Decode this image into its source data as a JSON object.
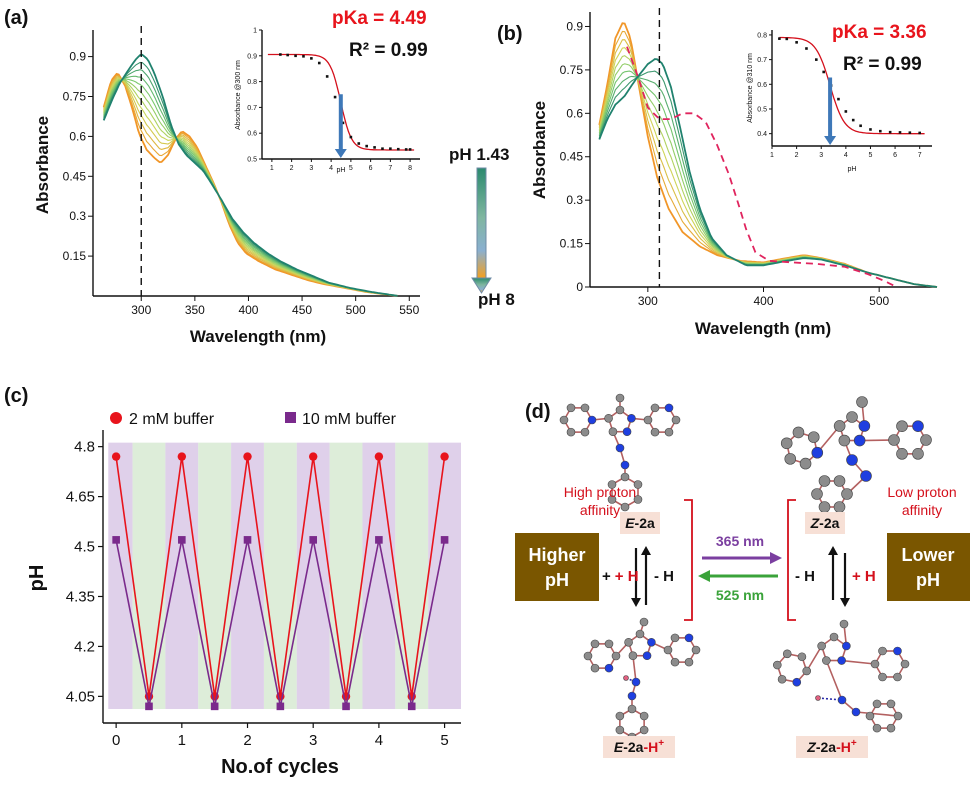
{
  "panels": {
    "a": "(a)",
    "b": "(b)",
    "c": "(c)",
    "d": "(d)"
  },
  "chart_data": [
    {
      "id": "a",
      "type": "line",
      "xlabel": "Wavelength (nm)",
      "ylabel": "Absorbance",
      "xlim": [
        255,
        560
      ],
      "ylim": [
        0,
        1.0
      ],
      "xticks": [
        300,
        350,
        400,
        450,
        500,
        550
      ],
      "yticks": [
        0.15,
        0.3,
        0.45,
        0.6,
        0.75,
        0.9
      ],
      "dashed_line_x": 300,
      "pka_label": "pKa = 4.49",
      "r2_label": "R² = 0.99",
      "ph_start_label": "pH 1.43",
      "ph_end_label": "pH 8",
      "curve_count": 12,
      "acid_spectrum": [
        [
          265,
          0.71
        ],
        [
          272,
          0.81
        ],
        [
          278,
          0.84
        ],
        [
          285,
          0.79
        ],
        [
          292,
          0.7
        ],
        [
          298,
          0.61
        ],
        [
          305,
          0.55
        ],
        [
          312,
          0.52
        ],
        [
          318,
          0.5
        ],
        [
          325,
          0.53
        ],
        [
          332,
          0.59
        ],
        [
          338,
          0.62
        ],
        [
          345,
          0.6
        ],
        [
          352,
          0.56
        ],
        [
          360,
          0.49
        ],
        [
          368,
          0.42
        ],
        [
          375,
          0.35
        ],
        [
          382,
          0.27
        ],
        [
          390,
          0.2
        ],
        [
          398,
          0.16
        ],
        [
          410,
          0.13
        ],
        [
          425,
          0.1
        ],
        [
          440,
          0.08
        ],
        [
          455,
          0.06
        ],
        [
          470,
          0.045
        ],
        [
          490,
          0.03
        ],
        [
          510,
          0.015
        ],
        [
          530,
          0.005
        ],
        [
          540,
          0.0
        ]
      ],
      "base_spectrum": [
        [
          265,
          0.66
        ],
        [
          272,
          0.73
        ],
        [
          280,
          0.8
        ],
        [
          288,
          0.85
        ],
        [
          295,
          0.89
        ],
        [
          300,
          0.91
        ],
        [
          306,
          0.89
        ],
        [
          312,
          0.84
        ],
        [
          320,
          0.75
        ],
        [
          328,
          0.64
        ],
        [
          335,
          0.57
        ],
        [
          342,
          0.53
        ],
        [
          350,
          0.5
        ],
        [
          358,
          0.47
        ],
        [
          366,
          0.42
        ],
        [
          375,
          0.36
        ],
        [
          385,
          0.29
        ],
        [
          395,
          0.24
        ],
        [
          405,
          0.2
        ],
        [
          418,
          0.16
        ],
        [
          430,
          0.13
        ],
        [
          445,
          0.1
        ],
        [
          460,
          0.075
        ],
        [
          475,
          0.05
        ],
        [
          495,
          0.03
        ],
        [
          515,
          0.015
        ],
        [
          540,
          0.0
        ]
      ],
      "inset": {
        "xlabel": "pH",
        "ylabel": "Absorbance @300 nm",
        "xlim": [
          0.5,
          8.5
        ],
        "ylim": [
          0.5,
          1.0
        ],
        "xticks": [
          1,
          2,
          3,
          4,
          5,
          6,
          7,
          8
        ],
        "yticks": [
          0.5,
          0.6,
          0.7,
          0.8,
          0.9,
          1.0
        ],
        "points": [
          [
            1.43,
            0.905
          ],
          [
            1.8,
            0.903
          ],
          [
            2.2,
            0.9
          ],
          [
            2.6,
            0.898
          ],
          [
            3.0,
            0.89
          ],
          [
            3.4,
            0.872
          ],
          [
            3.8,
            0.82
          ],
          [
            4.2,
            0.74
          ],
          [
            4.6,
            0.64
          ],
          [
            5.0,
            0.585
          ],
          [
            5.4,
            0.56
          ],
          [
            5.8,
            0.55
          ],
          [
            6.2,
            0.545
          ],
          [
            6.6,
            0.54
          ],
          [
            7.0,
            0.54
          ],
          [
            7.4,
            0.538
          ],
          [
            7.8,
            0.537
          ],
          [
            8.0,
            0.537
          ]
        ],
        "fit": {
          "top": 0.905,
          "bottom": 0.535,
          "pka": 4.49,
          "slope": 1.6
        },
        "arrow_x": 4.49
      }
    },
    {
      "id": "b",
      "type": "line",
      "xlabel": "Wavelength (nm)",
      "ylabel": "Absorbance",
      "xlim": [
        250,
        550
      ],
      "ylim": [
        0,
        0.95
      ],
      "xticks": [
        300,
        400,
        500
      ],
      "yticks": [
        0,
        0.15,
        0.3,
        0.45,
        0.6,
        0.75,
        0.9
      ],
      "dashed_line_x": 310,
      "pka_label": "pKa = 3.36",
      "r2_label": "R² = 0.99",
      "curve_count": 10,
      "acid_spectrum": [
        [
          258,
          0.56
        ],
        [
          265,
          0.7
        ],
        [
          272,
          0.86
        ],
        [
          279,
          0.92
        ],
        [
          285,
          0.86
        ],
        [
          292,
          0.7
        ],
        [
          300,
          0.52
        ],
        [
          308,
          0.38
        ],
        [
          318,
          0.27
        ],
        [
          330,
          0.19
        ],
        [
          345,
          0.14
        ],
        [
          360,
          0.11
        ],
        [
          380,
          0.09
        ],
        [
          400,
          0.085
        ],
        [
          420,
          0.1
        ],
        [
          435,
          0.11
        ],
        [
          450,
          0.1
        ],
        [
          470,
          0.08
        ],
        [
          490,
          0.05
        ],
        [
          510,
          0.03
        ],
        [
          530,
          0.01
        ],
        [
          550,
          0.0
        ]
      ],
      "base_spectrum": [
        [
          258,
          0.51
        ],
        [
          265,
          0.58
        ],
        [
          272,
          0.63
        ],
        [
          280,
          0.66
        ],
        [
          290,
          0.72
        ],
        [
          300,
          0.77
        ],
        [
          307,
          0.79
        ],
        [
          313,
          0.77
        ],
        [
          320,
          0.69
        ],
        [
          328,
          0.55
        ],
        [
          336,
          0.4
        ],
        [
          345,
          0.27
        ],
        [
          355,
          0.17
        ],
        [
          368,
          0.11
        ],
        [
          385,
          0.075
        ],
        [
          400,
          0.075
        ],
        [
          420,
          0.09
        ],
        [
          435,
          0.1
        ],
        [
          450,
          0.095
        ],
        [
          470,
          0.075
        ],
        [
          490,
          0.05
        ],
        [
          510,
          0.03
        ],
        [
          530,
          0.01
        ],
        [
          550,
          0.0
        ]
      ],
      "dashed_spectrum": [
        [
          282,
          0.83
        ],
        [
          292,
          0.72
        ],
        [
          300,
          0.62
        ],
        [
          310,
          0.58
        ],
        [
          320,
          0.58
        ],
        [
          330,
          0.6
        ],
        [
          340,
          0.6
        ],
        [
          350,
          0.57
        ],
        [
          360,
          0.49
        ],
        [
          370,
          0.39
        ],
        [
          378,
          0.29
        ],
        [
          385,
          0.2
        ],
        [
          393,
          0.12
        ],
        [
          405,
          0.09
        ],
        [
          425,
          0.085
        ],
        [
          445,
          0.08
        ],
        [
          470,
          0.07
        ],
        [
          490,
          0.045
        ],
        [
          505,
          0.02
        ],
        [
          515,
          0.0
        ]
      ],
      "inset": {
        "xlabel": "pH",
        "ylabel": "Absorbance @310 nm",
        "xlim": [
          1,
          7.5
        ],
        "ylim": [
          0.35,
          0.82
        ],
        "xticks": [
          1,
          2,
          3,
          4,
          5,
          6,
          7
        ],
        "yticks": [
          0.4,
          0.5,
          0.6,
          0.7,
          0.8
        ],
        "points": [
          [
            1.3,
            0.785
          ],
          [
            1.6,
            0.784
          ],
          [
            2.0,
            0.77
          ],
          [
            2.4,
            0.745
          ],
          [
            2.8,
            0.7
          ],
          [
            3.1,
            0.65
          ],
          [
            3.4,
            0.595
          ],
          [
            3.7,
            0.54
          ],
          [
            4.0,
            0.49
          ],
          [
            4.3,
            0.455
          ],
          [
            4.6,
            0.432
          ],
          [
            5.0,
            0.417
          ],
          [
            5.4,
            0.41
          ],
          [
            5.8,
            0.406
          ],
          [
            6.2,
            0.405
          ],
          [
            6.6,
            0.404
          ],
          [
            7.0,
            0.403
          ]
        ],
        "fit": {
          "top": 0.79,
          "bottom": 0.4,
          "pka": 3.36,
          "slope": 1.5
        },
        "arrow_x": 3.36
      }
    },
    {
      "id": "c",
      "type": "line",
      "xlabel": "No.of cycles",
      "ylabel": "pH",
      "xlim": [
        -0.2,
        5.25
      ],
      "ylim": [
        3.97,
        4.85
      ],
      "xticks": [
        0,
        1,
        2,
        3,
        4,
        5
      ],
      "yticks": [
        4.05,
        4.2,
        4.35,
        4.5,
        4.65,
        4.8
      ],
      "series": [
        {
          "name": "2 mM buffer",
          "color": "#e8141c",
          "marker": "circle",
          "x": [
            0,
            0.5,
            1,
            1.5,
            2,
            2.5,
            3,
            3.5,
            4,
            4.5,
            5
          ],
          "y": [
            4.77,
            4.05,
            4.77,
            4.05,
            4.77,
            4.05,
            4.77,
            4.05,
            4.77,
            4.05,
            4.77
          ]
        },
        {
          "name": "10 mM buffer",
          "color": "#7a2a8c",
          "marker": "square",
          "x": [
            0,
            0.5,
            1,
            1.5,
            2,
            2.5,
            3,
            3.5,
            4,
            4.5,
            5
          ],
          "y": [
            4.52,
            4.02,
            4.52,
            4.02,
            4.52,
            4.02,
            4.52,
            4.02,
            4.52,
            4.02,
            4.52
          ]
        }
      ],
      "band_colors": [
        "#d9c8e6",
        "#d7ead2"
      ]
    }
  ],
  "scheme": {
    "high_affinity_line1": "High proton",
    "high_affinity_line2": "affinity",
    "low_affinity_line1": "Low proton",
    "low_affinity_line2": "affinity",
    "higher_ph_line1": "Higher",
    "higher_ph_line2": "pH",
    "lower_ph_line1": "Lower",
    "lower_ph_line2": "pH",
    "e_prefix": "E",
    "z_prefix": "Z",
    "compound": "-2a",
    "proton_suffix": "-H",
    "plus": "+",
    "plus_h": "+ H",
    "minus_h": "- H",
    "superscript_plus": "+",
    "uv_label": "365 nm",
    "vis_label": "525 nm",
    "colors": {
      "box": "#7a5600",
      "uv": "#7b3fa0",
      "vis": "#3aa33a",
      "red": "#d4101c",
      "label_bg": "#f7e0d6"
    }
  }
}
